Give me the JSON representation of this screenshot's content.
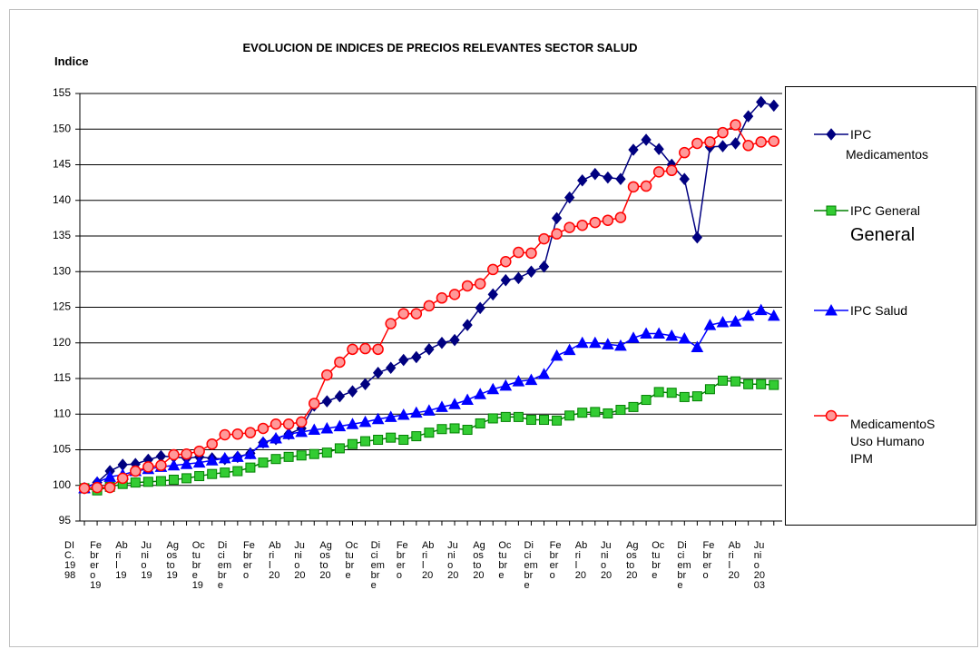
{
  "chart_data": {
    "type": "line",
    "title": "EVOLUCION DE INDICES DE PRECIOS RELEVANTES SECTOR SALUD",
    "y_label": "Indice",
    "annotations": [
      "General"
    ],
    "categories": [
      "DIC. 1998",
      null,
      "Febrero 19",
      null,
      "Abril 19",
      null,
      "Junio 19",
      null,
      "Agosto 19",
      null,
      "Octubre 19",
      null,
      "Diciembre",
      null,
      "Febrero",
      null,
      "Abril 20",
      null,
      "Junio 20",
      null,
      "Agosto 20",
      null,
      "Octubre",
      null,
      "Diciembre",
      null,
      "Febrero",
      null,
      "Abril 20",
      null,
      "Junio 20",
      null,
      "Agosto 20",
      null,
      "Octubre",
      null,
      "Diciembre",
      null,
      "Febrero",
      null,
      "Abril 20",
      null,
      "Junio 20",
      null,
      "Agosto 20",
      null,
      "Octubre",
      null,
      "Diciembre",
      null,
      "Febrero",
      null,
      "Abril 20",
      null,
      "Junio 2003"
    ],
    "ylim": [
      95,
      155
    ],
    "yticks": [
      95,
      100,
      105,
      110,
      115,
      120,
      125,
      130,
      135,
      140,
      145,
      150,
      155
    ],
    "grid": true,
    "legend": "right",
    "series": [
      {
        "name": "IPC Medicamentos",
        "color": "#000080",
        "marker": "diamond",
        "values": [
          99.6,
          100.4,
          102.0,
          102.9,
          103.0,
          103.6,
          104.1,
          104.0,
          103.8,
          104.0,
          103.8,
          103.7,
          104.0,
          104.5,
          106.0,
          106.5,
          107.2,
          108.0,
          111.2,
          111.8,
          112.5,
          113.2,
          114.2,
          115.8,
          116.5,
          117.6,
          118.0,
          119.1,
          120.0,
          120.4,
          122.5,
          124.9,
          126.8,
          128.8,
          129.1,
          130.0,
          130.7,
          137.5,
          140.4,
          142.8,
          143.7,
          143.2,
          143.0,
          147.1,
          148.5,
          147.2,
          145.0,
          143.0,
          134.8,
          147.5,
          147.6,
          148.0,
          151.8,
          153.8,
          153.3
        ]
      },
      {
        "name": "IPC General",
        "color": "#008000",
        "fill": "#33cc33",
        "marker": "square",
        "values": [
          99.6,
          99.3,
          99.8,
          100.2,
          100.4,
          100.5,
          100.6,
          100.8,
          101.0,
          101.3,
          101.6,
          101.8,
          102.0,
          102.5,
          103.2,
          103.7,
          104.0,
          104.2,
          104.4,
          104.6,
          105.2,
          105.8,
          106.2,
          106.4,
          106.7,
          106.4,
          106.9,
          107.4,
          107.9,
          108.0,
          107.8,
          108.7,
          109.4,
          109.6,
          109.6,
          109.2,
          109.2,
          109.1,
          109.8,
          110.2,
          110.3,
          110.1,
          110.6,
          111.0,
          112.0,
          113.1,
          113.0,
          112.4,
          112.5,
          113.5,
          114.7,
          114.6,
          114.2,
          114.2,
          114.1
        ]
      },
      {
        "name": "IPC Salud",
        "color": "#0000ff",
        "marker": "triangle",
        "values": [
          99.6,
          100.4,
          101.2,
          101.5,
          102.0,
          102.3,
          102.6,
          102.8,
          103.0,
          103.2,
          103.5,
          103.8,
          104.0,
          104.4,
          106.0,
          106.6,
          107.2,
          107.5,
          107.8,
          108.0,
          108.3,
          108.6,
          108.9,
          109.3,
          109.6,
          109.9,
          110.2,
          110.5,
          111.0,
          111.4,
          112.0,
          112.8,
          113.5,
          114.0,
          114.6,
          114.8,
          115.6,
          118.2,
          119.0,
          120.0,
          120.0,
          119.8,
          119.6,
          120.7,
          121.3,
          121.3,
          121.0,
          120.6,
          119.4,
          122.5,
          122.9,
          123.0,
          123.8,
          124.6,
          123.8
        ]
      },
      {
        "name": "MedicamentoS Uso Humano IPM",
        "color": "#ff0000",
        "fill": "#ff9999",
        "marker": "circle",
        "values": [
          99.6,
          99.7,
          99.7,
          101.0,
          102.0,
          102.6,
          102.8,
          104.3,
          104.4,
          104.8,
          105.8,
          107.1,
          107.2,
          107.4,
          108.0,
          108.6,
          108.6,
          108.9,
          111.5,
          115.5,
          117.3,
          119.1,
          119.2,
          119.1,
          122.7,
          124.1,
          124.1,
          125.2,
          126.3,
          126.8,
          128.0,
          128.3,
          130.3,
          131.4,
          132.7,
          132.6,
          134.6,
          135.3,
          136.2,
          136.5,
          136.9,
          137.2,
          137.6,
          141.9,
          142.0,
          144.0,
          144.2,
          146.7,
          148.0,
          148.2,
          149.5,
          150.6,
          147.7,
          148.2,
          148.3
        ]
      }
    ]
  }
}
